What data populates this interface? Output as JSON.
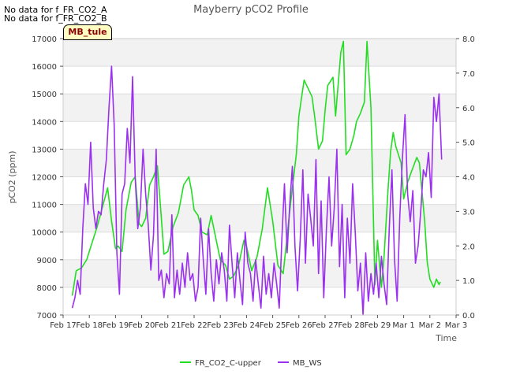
{
  "notes": [
    "No data for f_FR_CO2_A",
    "No data for f_FR_CO2_B"
  ],
  "badge": "MB_tule",
  "chart_data": {
    "type": "line",
    "title": "Mayberry pCO2 Profile",
    "xlabel": "Time",
    "ylabel": "pCO2 (ppm)",
    "x_ticks": [
      "Feb 17",
      "Feb 18",
      "Feb 19",
      "Feb 20",
      "Feb 21",
      "Feb 22",
      "Feb 23",
      "Feb 24",
      "Feb 25",
      "Feb 26",
      "Feb 27",
      "Feb 28",
      "Feb 29",
      "Mar 1",
      "Mar 2",
      "Mar 3"
    ],
    "xlim": [
      0,
      15
    ],
    "ylim_left": [
      7000,
      17000
    ],
    "y_ticks_left": [
      7000,
      8000,
      9000,
      10000,
      11000,
      12000,
      13000,
      14000,
      15000,
      16000,
      17000
    ],
    "ylim_right": [
      0.0,
      8.0
    ],
    "y_ticks_right": [
      "0.0",
      "1.0",
      "2.0",
      "3.0",
      "4.0",
      "5.0",
      "6.0",
      "7.0",
      "8.0"
    ],
    "grid": true,
    "legend_position": "bottom-center",
    "series": [
      {
        "name": "FR_CO2_C-upper",
        "axis": "left",
        "color": "#22dd22",
        "x": [
          0.35,
          0.5,
          0.7,
          0.9,
          1.1,
          1.3,
          1.5,
          1.7,
          1.85,
          2.0,
          2.1,
          2.25,
          2.4,
          2.6,
          2.75,
          2.9,
          3.0,
          3.15,
          3.3,
          3.45,
          3.6,
          3.75,
          3.85,
          4.0,
          4.2,
          4.4,
          4.6,
          4.8,
          4.9,
          5.0,
          5.15,
          5.3,
          5.5,
          5.65,
          5.8,
          6.0,
          6.2,
          6.35,
          6.5,
          6.7,
          6.9,
          7.0,
          7.2,
          7.4,
          7.6,
          7.8,
          8.0,
          8.2,
          8.4,
          8.5,
          8.6,
          8.75,
          8.9,
          9.0,
          9.2,
          9.35,
          9.5,
          9.6,
          9.75,
          9.9,
          10.0,
          10.1,
          10.3,
          10.4,
          10.6,
          10.7,
          10.8,
          10.95,
          11.1,
          11.2,
          11.35,
          11.5,
          11.6,
          11.75,
          11.85,
          11.9,
          12.0,
          12.15,
          12.25,
          12.4,
          12.5,
          12.6,
          12.7,
          12.9,
          13.0,
          13.15,
          13.3,
          13.5,
          13.6,
          13.8,
          13.9,
          14.0,
          14.15,
          14.25,
          14.35,
          14.4
        ],
        "values": [
          7700,
          8600,
          8700,
          9000,
          9600,
          10200,
          10900,
          11600,
          10400,
          9400,
          9500,
          9300,
          10800,
          11800,
          12000,
          10300,
          10200,
          10500,
          11700,
          12000,
          12400,
          10500,
          9200,
          9300,
          10200,
          10700,
          11700,
          12000,
          11500,
          10800,
          10600,
          10000,
          9900,
          10600,
          9900,
          9000,
          8800,
          8300,
          8400,
          8800,
          9700,
          9500,
          8600,
          9100,
          10100,
          11600,
          10400,
          8800,
          8500,
          9400,
          10300,
          11600,
          12800,
          14200,
          15500,
          15200,
          14900,
          14200,
          13000,
          13300,
          14400,
          15300,
          15600,
          14200,
          16500,
          16900,
          12800,
          13000,
          13500,
          14000,
          14300,
          14700,
          16900,
          14500,
          10300,
          8100,
          9700,
          8000,
          9100,
          11500,
          12900,
          13600,
          13100,
          12500,
          11200,
          11800,
          12200,
          12700,
          12500,
          10400,
          8900,
          8300,
          8000,
          8300,
          8100,
          8200
        ]
      },
      {
        "name": "MB_WS",
        "axis": "right",
        "color": "#9b30f0",
        "x": [
          0.35,
          0.45,
          0.55,
          0.65,
          0.75,
          0.85,
          0.95,
          1.05,
          1.15,
          1.25,
          1.35,
          1.45,
          1.55,
          1.65,
          1.75,
          1.85,
          1.95,
          2.05,
          2.15,
          2.25,
          2.35,
          2.45,
          2.55,
          2.65,
          2.75,
          2.85,
          2.95,
          3.05,
          3.15,
          3.25,
          3.35,
          3.45,
          3.55,
          3.65,
          3.75,
          3.85,
          3.95,
          4.05,
          4.15,
          4.25,
          4.35,
          4.45,
          4.55,
          4.65,
          4.75,
          4.85,
          4.95,
          5.05,
          5.15,
          5.25,
          5.35,
          5.45,
          5.55,
          5.65,
          5.75,
          5.85,
          5.95,
          6.05,
          6.15,
          6.25,
          6.35,
          6.45,
          6.55,
          6.65,
          6.75,
          6.85,
          6.95,
          7.05,
          7.15,
          7.25,
          7.35,
          7.45,
          7.55,
          7.65,
          7.75,
          7.85,
          7.95,
          8.05,
          8.15,
          8.25,
          8.35,
          8.45,
          8.55,
          8.65,
          8.75,
          8.85,
          8.95,
          9.05,
          9.15,
          9.25,
          9.35,
          9.45,
          9.55,
          9.65,
          9.75,
          9.85,
          9.95,
          10.05,
          10.15,
          10.25,
          10.35,
          10.45,
          10.55,
          10.65,
          10.75,
          10.85,
          10.95,
          11.05,
          11.15,
          11.25,
          11.35,
          11.45,
          11.55,
          11.65,
          11.75,
          11.85,
          11.95,
          12.05,
          12.15,
          12.25,
          12.35,
          12.45,
          12.55,
          12.65,
          12.75,
          12.85,
          12.95,
          13.05,
          13.15,
          13.25,
          13.35,
          13.45,
          13.55,
          13.65,
          13.75,
          13.85,
          13.95,
          14.05,
          14.15,
          14.25,
          14.35,
          14.45
        ],
        "values": [
          0.2,
          0.5,
          1.0,
          0.6,
          2.5,
          3.8,
          3.2,
          5.0,
          3.1,
          2.5,
          3.0,
          2.9,
          3.8,
          4.5,
          6.0,
          7.2,
          5.5,
          1.8,
          0.6,
          3.5,
          3.8,
          5.4,
          4.4,
          6.9,
          4.0,
          2.5,
          3.1,
          4.8,
          3.5,
          2.6,
          1.3,
          2.3,
          4.8,
          1.0,
          1.3,
          0.5,
          1.2,
          0.9,
          2.9,
          0.5,
          1.3,
          0.6,
          1.5,
          0.8,
          1.8,
          1.0,
          1.2,
          0.4,
          0.8,
          2.8,
          1.6,
          0.6,
          2.5,
          1.2,
          0.4,
          1.6,
          0.9,
          1.8,
          1.3,
          0.4,
          2.6,
          1.5,
          0.5,
          1.8,
          1.0,
          0.3,
          2.4,
          1.5,
          1.2,
          0.4,
          1.6,
          0.9,
          0.2,
          1.7,
          0.6,
          1.2,
          0.5,
          1.5,
          0.9,
          0.2,
          2.2,
          3.8,
          1.8,
          3.2,
          4.3,
          2.0,
          0.7,
          2.2,
          4.2,
          1.5,
          3.5,
          2.8,
          2.0,
          4.5,
          1.2,
          3.3,
          0.5,
          2.5,
          4.0,
          2.0,
          3.1,
          4.8,
          1.4,
          3.2,
          0.5,
          2.8,
          1.5,
          3.8,
          2.4,
          0.7,
          1.5,
          0.0,
          1.8,
          0.4,
          1.2,
          0.6,
          1.5,
          0.5,
          1.7,
          0.9,
          0.3,
          2.5,
          4.2,
          1.6,
          0.4,
          2.8,
          4.5,
          5.8,
          3.5,
          2.7,
          3.6,
          1.5,
          2.0,
          3.0,
          4.2,
          4.0,
          4.7,
          3.4,
          6.3,
          5.6,
          6.4,
          4.5
        ]
      }
    ]
  }
}
